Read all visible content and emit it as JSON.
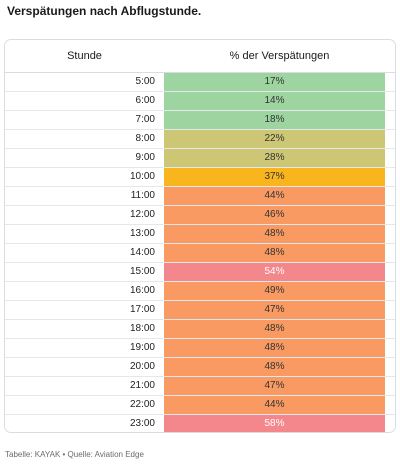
{
  "title": "Verspätungen nach Abflugstunde.",
  "table": {
    "headers": {
      "hour": "Stunde",
      "percent": "% der Verspätungen"
    },
    "rows": [
      {
        "hour": "5:00",
        "percent": "17%",
        "color": "#9dd49f",
        "text": "dark"
      },
      {
        "hour": "6:00",
        "percent": "14%",
        "color": "#9dd49f",
        "text": "dark"
      },
      {
        "hour": "7:00",
        "percent": "18%",
        "color": "#9dd49f",
        "text": "dark"
      },
      {
        "hour": "8:00",
        "percent": "22%",
        "color": "#cdc674",
        "text": "dark"
      },
      {
        "hour": "9:00",
        "percent": "28%",
        "color": "#cdc674",
        "text": "dark"
      },
      {
        "hour": "10:00",
        "percent": "37%",
        "color": "#f9b51e",
        "text": "dark"
      },
      {
        "hour": "11:00",
        "percent": "44%",
        "color": "#f89a62",
        "text": "dark"
      },
      {
        "hour": "12:00",
        "percent": "46%",
        "color": "#f89a62",
        "text": "dark"
      },
      {
        "hour": "13:00",
        "percent": "48%",
        "color": "#f89a62",
        "text": "dark"
      },
      {
        "hour": "14:00",
        "percent": "48%",
        "color": "#f89a62",
        "text": "dark"
      },
      {
        "hour": "15:00",
        "percent": "54%",
        "color": "#f3878b",
        "text": "light"
      },
      {
        "hour": "16:00",
        "percent": "49%",
        "color": "#f89a62",
        "text": "dark"
      },
      {
        "hour": "17:00",
        "percent": "47%",
        "color": "#f89a62",
        "text": "dark"
      },
      {
        "hour": "18:00",
        "percent": "48%",
        "color": "#f89a62",
        "text": "dark"
      },
      {
        "hour": "19:00",
        "percent": "48%",
        "color": "#f89a62",
        "text": "dark"
      },
      {
        "hour": "20:00",
        "percent": "48%",
        "color": "#f89a62",
        "text": "dark"
      },
      {
        "hour": "21:00",
        "percent": "47%",
        "color": "#f89a62",
        "text": "dark"
      },
      {
        "hour": "22:00",
        "percent": "44%",
        "color": "#f89a62",
        "text": "dark"
      },
      {
        "hour": "23:00",
        "percent": "58%",
        "color": "#f3878b",
        "text": "light"
      }
    ]
  },
  "footer": "Tabelle: KAYAK • Quelle: Aviation Edge"
}
